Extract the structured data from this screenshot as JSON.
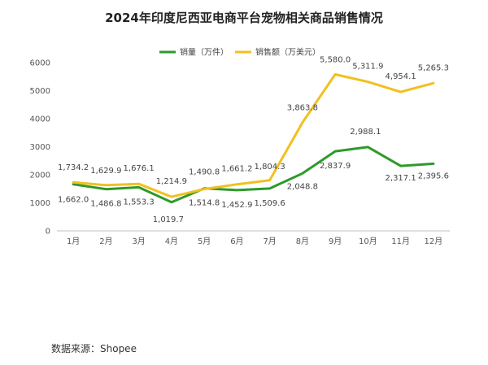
{
  "chart_data": {
    "type": "line",
    "title": "2024年印度尼西亚电商平台宠物相关商品销售情况",
    "categories": [
      "1月",
      "2月",
      "3月",
      "4月",
      "5月",
      "6月",
      "7月",
      "8月",
      "9月",
      "10月",
      "11月",
      "12月"
    ],
    "series": [
      {
        "name": "销量（万件）",
        "color": "#2e9a2a",
        "values": [
          1662.0,
          1486.8,
          1553.3,
          1019.7,
          1514.8,
          1452.9,
          1509.6,
          2048.8,
          2837.9,
          2988.1,
          2317.1,
          2395.6
        ],
        "labels": [
          "1,662.0",
          "1,486.8",
          "1,553.3",
          "1,019.7",
          "1,514.8",
          "1,452.9",
          "1,509.6",
          "2,048.8",
          "2,837.9",
          "2,988.1",
          "2,317.1",
          "2,395.6"
        ]
      },
      {
        "name": "销售额（万美元）",
        "color": "#f2c01e",
        "values": [
          1734.2,
          1629.9,
          1676.1,
          1214.9,
          1490.8,
          1661.2,
          1804.3,
          3863.8,
          5580.0,
          5311.9,
          4954.1,
          5265.3
        ],
        "labels": [
          "1,734.2",
          "1,629.9",
          "1,676.1",
          "1,214.9",
          "1,490.8",
          "1,661.2",
          "1,804.3",
          "3,863.8",
          "5,580.0",
          "5,311.9",
          "4,954.1",
          "5,265.3"
        ]
      }
    ],
    "ylim": [
      0,
      6000
    ],
    "yticks": [
      0,
      1000,
      2000,
      3000,
      4000,
      5000,
      6000
    ],
    "ytick_labels": [
      "0",
      "1000",
      "2000",
      "3000",
      "4000",
      "5000",
      "6000"
    ],
    "xlabel": "",
    "ylabel": "",
    "grid": false,
    "legend": "top-center"
  },
  "source": "数据来源：Shopee"
}
